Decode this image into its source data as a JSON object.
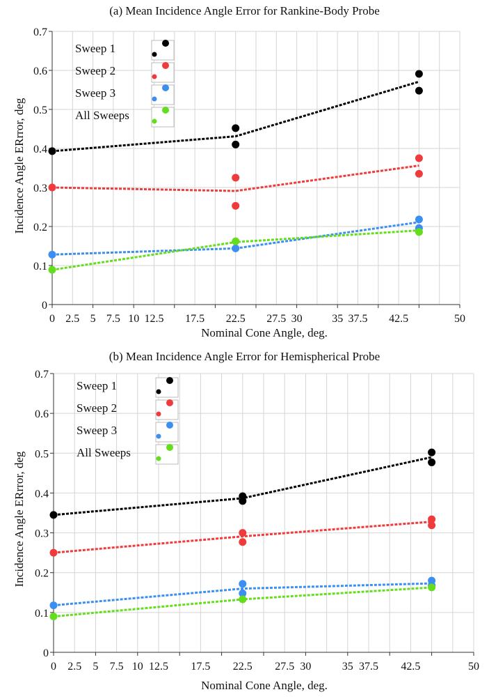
{
  "chart_data": [
    {
      "type": "scatter",
      "title": "(a) Mean Incidence Angle Error for Rankine-Body Probe",
      "xlabel": "Nominal Cone Angle, deg.",
      "ylabel": "Incidence Angle ERrror, deg",
      "xlim": [
        0,
        50
      ],
      "ylim": [
        0,
        0.7
      ],
      "x_ticks": [
        "0",
        "2.5",
        "5",
        "7.5",
        "10",
        "12.5",
        "17.5",
        "22.5",
        "27.5",
        "30",
        "35",
        "37.5",
        "42.5",
        "50"
      ],
      "x_tick_values": [
        0,
        2.5,
        5,
        7.5,
        10,
        12.5,
        17.5,
        22.5,
        27.5,
        30,
        35,
        37.5,
        42.5,
        50
      ],
      "y_ticks": [
        "0",
        "0.1",
        "0.2",
        "0.3",
        "0.4",
        "0.5",
        "0.6",
        "0.7"
      ],
      "grid": true,
      "legend_position": "top-left",
      "series": [
        {
          "name": "Sweep 1",
          "color": "#000000",
          "points": [
            [
              0,
              0.393
            ],
            [
              22.5,
              0.452
            ],
            [
              22.5,
              0.41
            ],
            [
              45,
              0.591
            ],
            [
              45,
              0.548
            ]
          ],
          "trend": [
            [
              0,
              0.393
            ],
            [
              22.5,
              0.431
            ],
            [
              45,
              0.571
            ]
          ]
        },
        {
          "name": "Sweep 2",
          "color": "#ef3b3b",
          "points": [
            [
              0,
              0.3
            ],
            [
              22.5,
              0.325
            ],
            [
              22.5,
              0.253
            ],
            [
              45,
              0.375
            ],
            [
              45,
              0.335
            ]
          ],
          "trend": [
            [
              0,
              0.3
            ],
            [
              22.5,
              0.291
            ],
            [
              45,
              0.356
            ]
          ]
        },
        {
          "name": "Sweep 3",
          "color": "#3b8ff0",
          "points": [
            [
              0,
              0.128
            ],
            [
              22.5,
              0.144
            ],
            [
              45,
              0.218
            ],
            [
              45,
              0.196
            ]
          ],
          "trend": [
            [
              0,
              0.128
            ],
            [
              22.5,
              0.144
            ],
            [
              45,
              0.211
            ]
          ]
        },
        {
          "name": "All Sweeps",
          "color": "#64dd1c",
          "points": [
            [
              0,
              0.089
            ],
            [
              22.5,
              0.162
            ],
            [
              45,
              0.186
            ]
          ],
          "trend": [
            [
              0,
              0.089
            ],
            [
              22.5,
              0.16
            ],
            [
              45,
              0.19
            ]
          ]
        }
      ]
    },
    {
      "type": "scatter",
      "title": "(b) Mean Incidence Angle Error for Hemispherical Probe",
      "xlabel": "Nominal Cone Angle, deg.",
      "ylabel": "Incidence Angle ERrror, deg",
      "xlim": [
        0,
        50
      ],
      "ylim": [
        0,
        0.7
      ],
      "x_ticks": [
        "0",
        "2.5",
        "5",
        "7.5",
        "10",
        "12.5",
        "17.5",
        "22.5",
        "27.5",
        "30",
        "35",
        "37.5",
        "42.5",
        "50"
      ],
      "x_tick_values": [
        0,
        2.5,
        5,
        7.5,
        10,
        12.5,
        17.5,
        22.5,
        27.5,
        30,
        35,
        37.5,
        42.5,
        50
      ],
      "y_ticks": [
        "0",
        "0.1",
        "0.2",
        "0.3",
        "0.4",
        "0.5",
        "0.6",
        "0.7"
      ],
      "grid": true,
      "legend_position": "top-left",
      "series": [
        {
          "name": "Sweep 1",
          "color": "#000000",
          "points": [
            [
              0,
              0.345
            ],
            [
              22.5,
              0.392
            ],
            [
              22.5,
              0.38
            ],
            [
              45,
              0.502
            ],
            [
              45,
              0.477
            ]
          ],
          "trend": [
            [
              0,
              0.345
            ],
            [
              22.5,
              0.387
            ],
            [
              45,
              0.49
            ]
          ]
        },
        {
          "name": "Sweep 2",
          "color": "#ef3b3b",
          "points": [
            [
              0,
              0.25
            ],
            [
              22.5,
              0.3
            ],
            [
              22.5,
              0.277
            ],
            [
              45,
              0.334
            ],
            [
              45,
              0.319
            ]
          ],
          "trend": [
            [
              0,
              0.25
            ],
            [
              22.5,
              0.291
            ],
            [
              45,
              0.328
            ]
          ]
        },
        {
          "name": "Sweep 3",
          "color": "#3b8ff0",
          "points": [
            [
              0,
              0.118
            ],
            [
              22.5,
              0.172
            ],
            [
              22.5,
              0.148
            ],
            [
              45,
              0.18
            ],
            [
              45,
              0.168
            ]
          ],
          "trend": [
            [
              0,
              0.118
            ],
            [
              22.5,
              0.16
            ],
            [
              45,
              0.173
            ]
          ]
        },
        {
          "name": "All Sweeps",
          "color": "#64dd1c",
          "points": [
            [
              0,
              0.09
            ],
            [
              22.5,
              0.133
            ],
            [
              45,
              0.163
            ]
          ],
          "trend": [
            [
              0,
              0.09
            ],
            [
              22.5,
              0.133
            ],
            [
              45,
              0.163
            ]
          ]
        }
      ]
    }
  ]
}
